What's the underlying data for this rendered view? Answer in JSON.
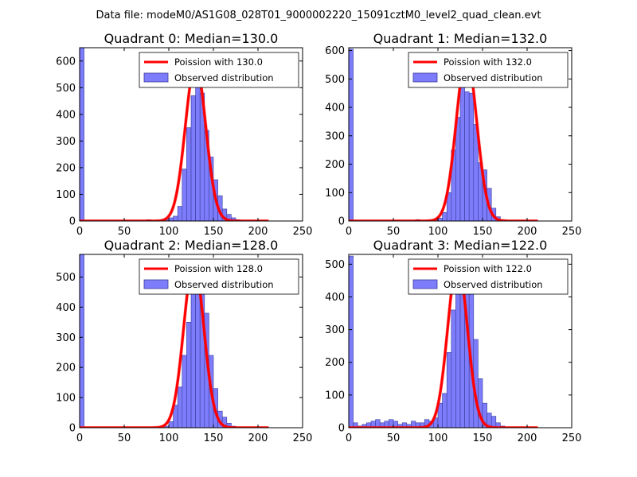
{
  "figure": {
    "suptitle": "Data file: modeM0/AS1G08_028T01_9000002220_15091cztM0_level2_quad_clean.evt"
  },
  "colors": {
    "fit_line": "#ff0000",
    "hist_fill": "#7d7dfb",
    "hist_edge": "#3a3a9a"
  },
  "chart_data": [
    {
      "type": "histogram+line",
      "title": "Quadrant 0: Median=130.0",
      "median": 130,
      "legend": {
        "line": "Poission with 130.0",
        "bars": "Observed distribution",
        "placement": "upper-right"
      },
      "xlim": [
        0,
        250
      ],
      "ylim": [
        0,
        650
      ],
      "xticks": [
        0,
        50,
        100,
        150,
        200,
        250
      ],
      "yticks": [
        0,
        100,
        200,
        300,
        400,
        500,
        600
      ],
      "bin_width": 5,
      "bins": [
        [
          0,
          650
        ],
        [
          75,
          5
        ],
        [
          95,
          5
        ],
        [
          100,
          12
        ],
        [
          105,
          18
        ],
        [
          110,
          55
        ],
        [
          115,
          195
        ],
        [
          120,
          350
        ],
        [
          125,
          470
        ],
        [
          130,
          525
        ],
        [
          135,
          480
        ],
        [
          140,
          340
        ],
        [
          145,
          240
        ],
        [
          150,
          155
        ],
        [
          155,
          95
        ],
        [
          160,
          45
        ],
        [
          165,
          25
        ],
        [
          170,
          12
        ],
        [
          175,
          5
        ]
      ],
      "fit_amplitude": 590
    },
    {
      "type": "histogram+line",
      "title": "Quadrant 1: Median=132.0",
      "median": 132,
      "legend": {
        "line": "Poission with 132.0",
        "bars": "Observed distribution",
        "placement": "upper-right"
      },
      "xlim": [
        0,
        250
      ],
      "ylim": [
        0,
        610
      ],
      "xticks": [
        0,
        50,
        100,
        150,
        200,
        250
      ],
      "yticks": [
        0,
        100,
        200,
        300,
        400,
        500,
        600
      ],
      "bin_width": 5,
      "bins": [
        [
          0,
          605
        ],
        [
          75,
          5
        ],
        [
          95,
          5
        ],
        [
          100,
          10
        ],
        [
          105,
          30
        ],
        [
          110,
          100
        ],
        [
          115,
          250
        ],
        [
          120,
          365
        ],
        [
          125,
          490
        ],
        [
          130,
          455
        ],
        [
          135,
          450
        ],
        [
          140,
          340
        ],
        [
          145,
          205
        ],
        [
          150,
          180
        ],
        [
          155,
          115
        ],
        [
          160,
          45
        ],
        [
          165,
          15
        ],
        [
          170,
          5
        ]
      ],
      "fit_amplitude": 580
    },
    {
      "type": "histogram+line",
      "title": "Quadrant 2: Median=128.0",
      "median": 128,
      "legend": {
        "line": "Poission with 128.0",
        "bars": "Observed distribution",
        "placement": "upper-right"
      },
      "xlim": [
        0,
        250
      ],
      "ylim": [
        0,
        575
      ],
      "xticks": [
        0,
        50,
        100,
        150,
        200,
        250
      ],
      "yticks": [
        0,
        100,
        200,
        300,
        400,
        500
      ],
      "bin_width": 5,
      "bins": [
        [
          0,
          575
        ],
        [
          75,
          3
        ],
        [
          95,
          5
        ],
        [
          100,
          20
        ],
        [
          105,
          75
        ],
        [
          110,
          135
        ],
        [
          115,
          240
        ],
        [
          120,
          350
        ],
        [
          125,
          500
        ],
        [
          130,
          550
        ],
        [
          135,
          480
        ],
        [
          140,
          380
        ],
        [
          145,
          240
        ],
        [
          150,
          130
        ],
        [
          155,
          55
        ],
        [
          160,
          35
        ],
        [
          165,
          15
        ],
        [
          170,
          5
        ]
      ],
      "fit_amplitude": 548
    },
    {
      "type": "histogram+line",
      "title": "Quadrant 3: Median=122.0",
      "median": 122,
      "legend": {
        "line": "Poission with 122.0",
        "bars": "Observed distribution",
        "placement": "upper-right"
      },
      "xlim": [
        0,
        250
      ],
      "ylim": [
        0,
        530
      ],
      "xticks": [
        0,
        50,
        100,
        150,
        200,
        250
      ],
      "yticks": [
        0,
        100,
        200,
        300,
        400,
        500
      ],
      "bin_width": 5,
      "bins": [
        [
          0,
          525
        ],
        [
          5,
          15
        ],
        [
          10,
          5
        ],
        [
          15,
          10
        ],
        [
          20,
          15
        ],
        [
          25,
          20
        ],
        [
          30,
          25
        ],
        [
          35,
          15
        ],
        [
          40,
          20
        ],
        [
          45,
          25
        ],
        [
          50,
          20
        ],
        [
          55,
          10
        ],
        [
          60,
          15
        ],
        [
          65,
          10
        ],
        [
          70,
          20
        ],
        [
          75,
          15
        ],
        [
          80,
          15
        ],
        [
          85,
          25
        ],
        [
          90,
          20
        ],
        [
          95,
          30
        ],
        [
          100,
          75
        ],
        [
          105,
          105
        ],
        [
          110,
          230
        ],
        [
          115,
          360
        ],
        [
          120,
          425
        ],
        [
          125,
          460
        ],
        [
          130,
          490
        ],
        [
          135,
          455
        ],
        [
          140,
          270
        ],
        [
          145,
          150
        ],
        [
          150,
          75
        ],
        [
          155,
          45
        ],
        [
          160,
          35
        ],
        [
          165,
          15
        ],
        [
          170,
          5
        ]
      ],
      "fit_amplitude": 505
    }
  ]
}
